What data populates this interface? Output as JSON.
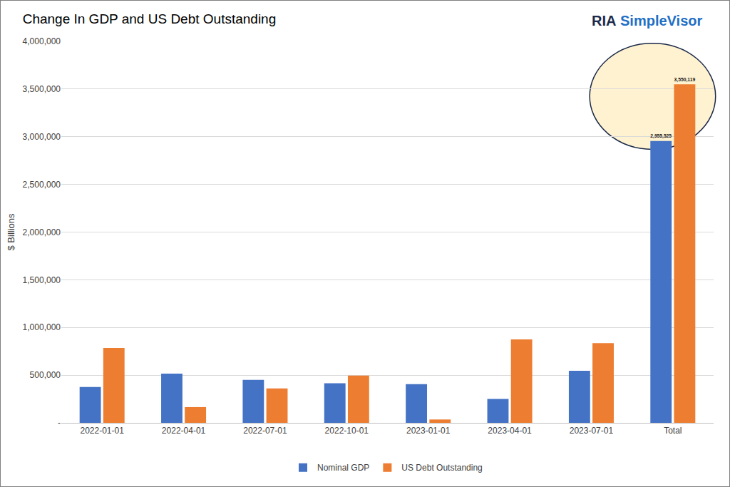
{
  "chart_data": {
    "type": "bar",
    "title": "Change In GDP and US Debt Outstanding",
    "logo": [
      "RIA",
      "SimpleVisor"
    ],
    "y_label": "$ Billions",
    "categories": [
      "2022-01-01",
      "2022-04-01",
      "2022-07-01",
      "2022-10-01",
      "2023-01-01",
      "2023-04-01",
      "2023-07-01",
      "Total"
    ],
    "series": [
      {
        "name": "Nominal GDP",
        "color": "#4472c4",
        "values": [
          375000,
          515000,
          450000,
          415000,
          405000,
          250000,
          545000,
          2955525
        ],
        "value_labels": [
          null,
          null,
          null,
          null,
          null,
          null,
          null,
          "2,955,525"
        ]
      },
      {
        "name": "US Debt Outstanding",
        "color": "#ed7d31",
        "values": [
          785000,
          165000,
          360000,
          495000,
          35000,
          875000,
          835000,
          3550119
        ],
        "value_labels": [
          null,
          null,
          null,
          null,
          null,
          null,
          null,
          "3,550,119"
        ]
      }
    ],
    "ylim": [
      0,
      4000000
    ],
    "yticks": [
      {
        "value": 0,
        "label": "-"
      },
      {
        "value": 500000,
        "label": "500,000"
      },
      {
        "value": 1000000,
        "label": "1,000,000"
      },
      {
        "value": 1500000,
        "label": "1,500,000"
      },
      {
        "value": 2000000,
        "label": "2,000,000"
      },
      {
        "value": 2500000,
        "label": "2,500,000"
      },
      {
        "value": 3000000,
        "label": "3,000,000"
      },
      {
        "value": 3500000,
        "label": "3,500,000"
      },
      {
        "value": 4000000,
        "label": "4,000,000"
      }
    ],
    "grid": true,
    "legend": "bottom",
    "data_labels": true
  }
}
